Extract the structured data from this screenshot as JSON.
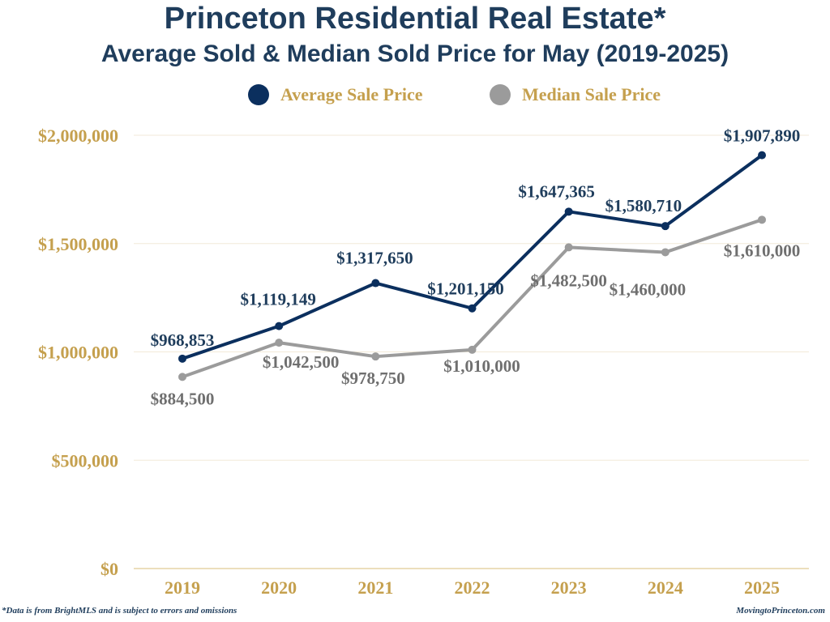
{
  "header": {
    "title": "Princeton Residential Real Estate*",
    "subtitle": "Average Sold & Median Sold Price for May (2019-2025)"
  },
  "footer": {
    "note": "*Data is from BrightMLS and is subject to errors and omissions",
    "site": "MovingtoPrinceton.com"
  },
  "colors": {
    "average": "#0b2f5e",
    "median": "#9b9b9b",
    "axis_text": "#c5a04e",
    "title": "#1f3d5c",
    "grid": "#f2ead8",
    "baseline": "#e6d3a6"
  },
  "chart_data": {
    "type": "line",
    "title": "Princeton Residential Real Estate*",
    "subtitle": "Average Sold & Median Sold Price for May (2019-2025)",
    "xlabel": "",
    "ylabel": "",
    "categories": [
      "2019",
      "2020",
      "2021",
      "2022",
      "2023",
      "2024",
      "2025"
    ],
    "ylim": [
      0,
      2000000
    ],
    "yticks": [
      0,
      500000,
      1000000,
      1500000,
      2000000
    ],
    "ytick_labels": [
      "$0",
      "$500,000",
      "$1,000,000",
      "$1,500,000",
      "$2,000,000"
    ],
    "grid": true,
    "legend_position": "top-center",
    "series": [
      {
        "name": "Average Sale Price",
        "values": [
          968853,
          1119149,
          1317650,
          1201150,
          1647365,
          1580710,
          1907890
        ],
        "labels": [
          "$968,853",
          "$1,119,149",
          "$1,317,650",
          "$1,201,150",
          "$1,647,365",
          "$1,580,710",
          "$1,907,890"
        ]
      },
      {
        "name": "Median Sale Price",
        "values": [
          884500,
          1042500,
          978750,
          1010000,
          1482500,
          1460000,
          1610000
        ],
        "labels": [
          "$884,500",
          "$1,042,500",
          "$978,750",
          "$1,010,000",
          "$1,482,500",
          "$1,460,000",
          "$1,610,000"
        ]
      }
    ]
  }
}
